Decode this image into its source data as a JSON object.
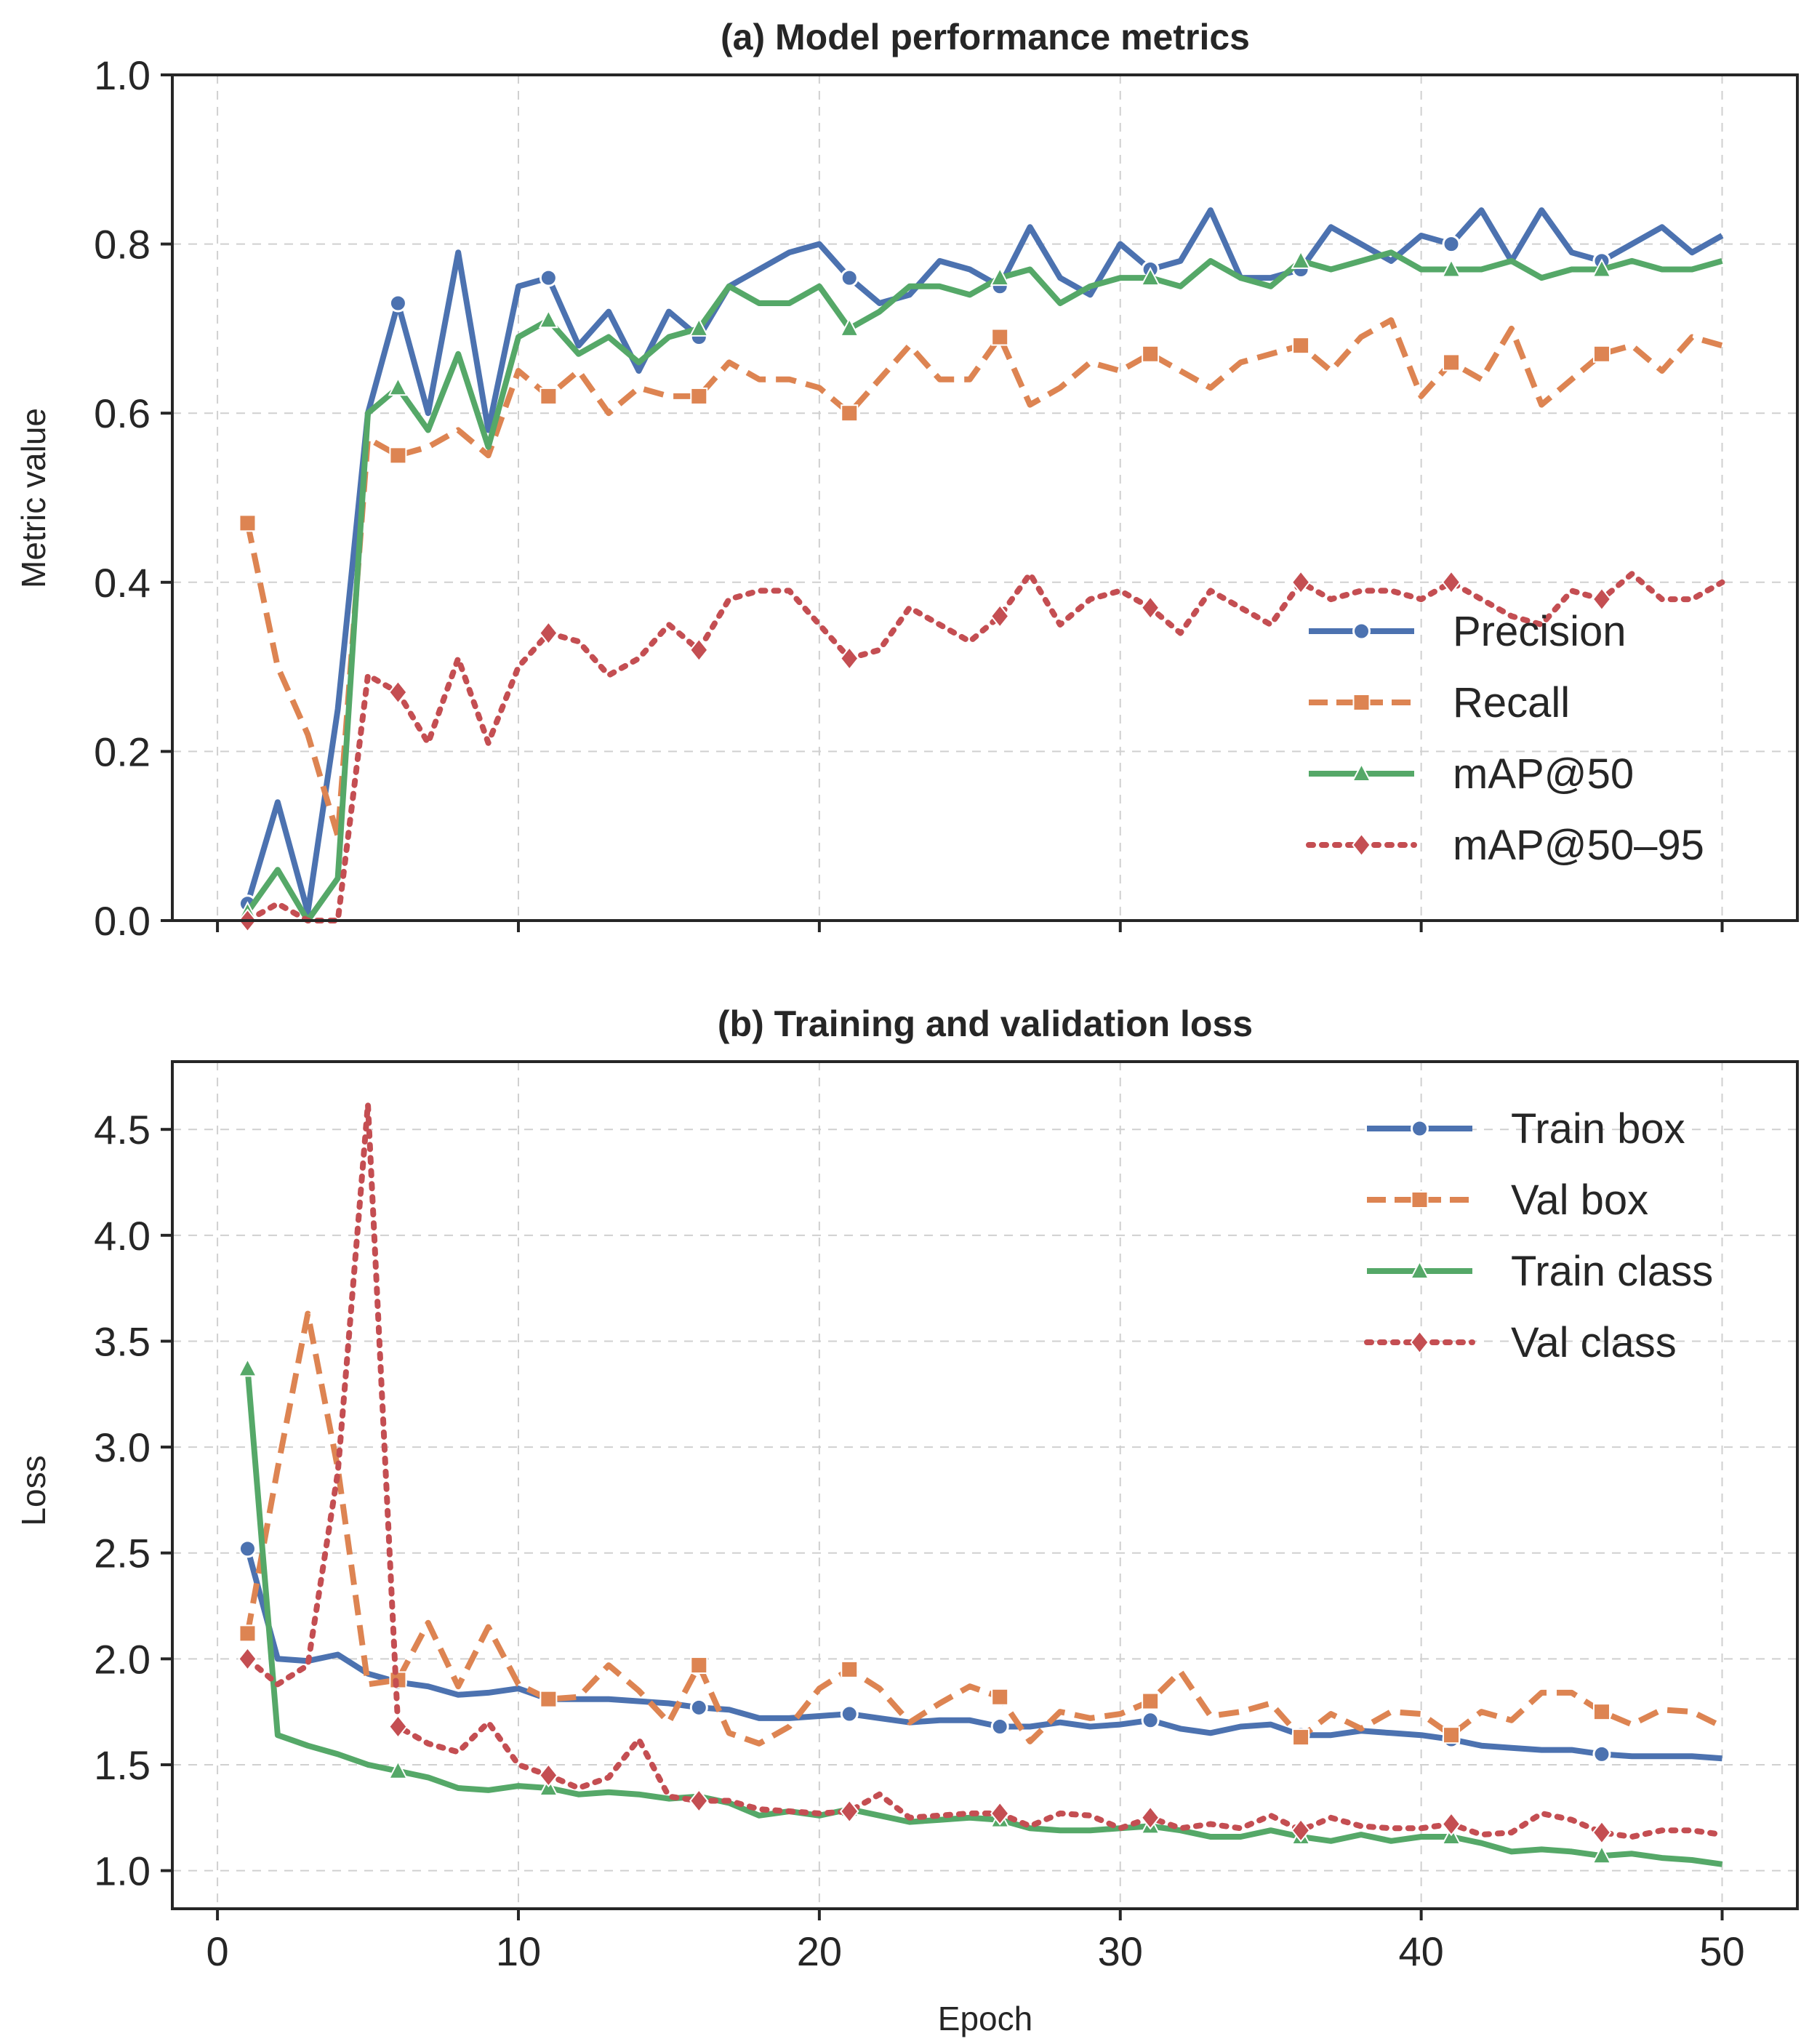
{
  "chart_data": [
    {
      "type": "line",
      "title": "(a) Model performance metrics",
      "xlabel": "",
      "ylabel": "Metric value",
      "xlim": [
        -1.5,
        52.5
      ],
      "ylim": [
        0.0,
        1.0
      ],
      "xticks": [
        0,
        10,
        20,
        30,
        40,
        50
      ],
      "yticks": [
        0.0,
        0.2,
        0.4,
        0.6,
        0.8,
        1.0
      ],
      "ytick_labels": [
        "0.0",
        "0.2",
        "0.4",
        "0.6",
        "0.8",
        "1.0"
      ],
      "legend_position": "center-right",
      "marker_every": 5,
      "x": [
        1,
        2,
        3,
        4,
        5,
        6,
        7,
        8,
        9,
        10,
        11,
        12,
        13,
        14,
        15,
        16,
        17,
        18,
        19,
        20,
        21,
        22,
        23,
        24,
        25,
        26,
        27,
        28,
        29,
        30,
        31,
        32,
        33,
        34,
        35,
        36,
        37,
        38,
        39,
        40,
        41,
        42,
        43,
        44,
        45,
        46,
        47,
        48,
        49,
        50
      ],
      "series": [
        {
          "name": "Precision",
          "color": "#4C72B0",
          "dash": "",
          "marker": "circle",
          "values": [
            0.02,
            0.14,
            0.01,
            0.25,
            0.6,
            0.73,
            0.6,
            0.79,
            0.58,
            0.75,
            0.76,
            0.68,
            0.72,
            0.65,
            0.72,
            0.69,
            0.75,
            0.77,
            0.79,
            0.8,
            0.76,
            0.73,
            0.74,
            0.78,
            0.77,
            0.75,
            0.82,
            0.76,
            0.74,
            0.8,
            0.77,
            0.78,
            0.84,
            0.76,
            0.76,
            0.77,
            0.82,
            0.8,
            0.78,
            0.81,
            0.8,
            0.84,
            0.78,
            0.84,
            0.79,
            0.78,
            0.8,
            0.82,
            0.79,
            0.81
          ]
        },
        {
          "name": "Recall",
          "color": "#DD8452",
          "dash": "28 14",
          "marker": "square",
          "values": [
            0.47,
            0.3,
            0.22,
            0.1,
            0.57,
            0.55,
            0.56,
            0.58,
            0.55,
            0.65,
            0.62,
            0.65,
            0.6,
            0.63,
            0.62,
            0.62,
            0.66,
            0.64,
            0.64,
            0.63,
            0.6,
            0.64,
            0.68,
            0.64,
            0.64,
            0.69,
            0.61,
            0.63,
            0.66,
            0.65,
            0.67,
            0.65,
            0.63,
            0.66,
            0.67,
            0.68,
            0.65,
            0.69,
            0.71,
            0.62,
            0.66,
            0.64,
            0.7,
            0.61,
            0.64,
            0.67,
            0.68,
            0.65,
            0.69,
            0.68
          ]
        },
        {
          "name": "mAP@50",
          "color": "#55A868",
          "dash": "",
          "marker": "triangle",
          "values": [
            0.01,
            0.06,
            0.0,
            0.05,
            0.6,
            0.63,
            0.58,
            0.67,
            0.56,
            0.69,
            0.71,
            0.67,
            0.69,
            0.66,
            0.69,
            0.7,
            0.75,
            0.73,
            0.73,
            0.75,
            0.7,
            0.72,
            0.75,
            0.75,
            0.74,
            0.76,
            0.77,
            0.73,
            0.75,
            0.76,
            0.76,
            0.75,
            0.78,
            0.76,
            0.75,
            0.78,
            0.77,
            0.78,
            0.79,
            0.77,
            0.77,
            0.77,
            0.78,
            0.76,
            0.77,
            0.77,
            0.78,
            0.77,
            0.77,
            0.78
          ]
        },
        {
          "name": "mAP@50–95",
          "color": "#C44E52",
          "dash": "6 12",
          "marker": "diamond",
          "values": [
            0.0,
            0.02,
            0.0,
            0.0,
            0.29,
            0.27,
            0.21,
            0.31,
            0.21,
            0.3,
            0.34,
            0.33,
            0.29,
            0.31,
            0.35,
            0.32,
            0.38,
            0.39,
            0.39,
            0.35,
            0.31,
            0.32,
            0.37,
            0.35,
            0.33,
            0.36,
            0.41,
            0.35,
            0.38,
            0.39,
            0.37,
            0.34,
            0.39,
            0.37,
            0.35,
            0.4,
            0.38,
            0.39,
            0.39,
            0.38,
            0.4,
            0.38,
            0.36,
            0.35,
            0.39,
            0.38,
            0.41,
            0.38,
            0.38,
            0.4
          ]
        }
      ]
    },
    {
      "type": "line",
      "title": "(b) Training and validation loss",
      "xlabel": "Epoch",
      "ylabel": "Loss",
      "xlim": [
        -1.5,
        52.5
      ],
      "ylim": [
        0.82,
        4.82
      ],
      "xticks": [
        0,
        10,
        20,
        30,
        40,
        50
      ],
      "xtick_labels": [
        "0",
        "10",
        "20",
        "30",
        "40",
        "50"
      ],
      "yticks": [
        1.0,
        1.5,
        2.0,
        2.5,
        3.0,
        3.5,
        4.0,
        4.5
      ],
      "ytick_labels": [
        "1.0",
        "1.5",
        "2.0",
        "2.5",
        "3.0",
        "3.5",
        "4.0",
        "4.5"
      ],
      "legend_position": "top-right",
      "marker_every": 5,
      "x": [
        1,
        2,
        3,
        4,
        5,
        6,
        7,
        8,
        9,
        10,
        11,
        12,
        13,
        14,
        15,
        16,
        17,
        18,
        19,
        20,
        21,
        22,
        23,
        24,
        25,
        26,
        27,
        28,
        29,
        30,
        31,
        32,
        33,
        34,
        35,
        36,
        37,
        38,
        39,
        40,
        41,
        42,
        43,
        44,
        45,
        46,
        47,
        48,
        49,
        50
      ],
      "series": [
        {
          "name": "Train box",
          "color": "#4C72B0",
          "dash": "",
          "marker": "circle",
          "values": [
            2.52,
            2.0,
            1.99,
            2.02,
            1.93,
            1.89,
            1.87,
            1.83,
            1.84,
            1.86,
            1.81,
            1.81,
            1.81,
            1.8,
            1.79,
            1.77,
            1.76,
            1.72,
            1.72,
            1.73,
            1.74,
            1.72,
            1.7,
            1.71,
            1.71,
            1.68,
            1.68,
            1.7,
            1.68,
            1.69,
            1.71,
            1.67,
            1.65,
            1.68,
            1.69,
            1.64,
            1.64,
            1.66,
            1.65,
            1.64,
            1.62,
            1.59,
            1.58,
            1.57,
            1.57,
            1.55,
            1.54,
            1.54,
            1.54,
            1.53
          ]
        },
        {
          "name": "Val box",
          "color": "#DD8452",
          "dash": "28 14",
          "marker": "square",
          "values": [
            2.12,
            2.9,
            3.63,
            2.9,
            1.88,
            1.9,
            2.17,
            1.87,
            2.15,
            1.88,
            1.81,
            1.82,
            1.97,
            1.85,
            1.7,
            1.97,
            1.65,
            1.6,
            1.68,
            1.86,
            1.95,
            1.86,
            1.7,
            1.79,
            1.87,
            1.82,
            1.61,
            1.75,
            1.72,
            1.74,
            1.8,
            1.94,
            1.73,
            1.75,
            1.79,
            1.63,
            1.74,
            1.67,
            1.75,
            1.74,
            1.64,
            1.75,
            1.71,
            1.84,
            1.84,
            1.75,
            1.69,
            1.76,
            1.75,
            1.68
          ]
        },
        {
          "name": "Train class",
          "color": "#55A868",
          "dash": "",
          "marker": "triangle",
          "values": [
            3.37,
            1.64,
            1.59,
            1.55,
            1.5,
            1.47,
            1.44,
            1.39,
            1.38,
            1.4,
            1.39,
            1.36,
            1.37,
            1.36,
            1.34,
            1.35,
            1.32,
            1.26,
            1.28,
            1.26,
            1.29,
            1.26,
            1.23,
            1.24,
            1.25,
            1.24,
            1.2,
            1.19,
            1.19,
            1.2,
            1.21,
            1.19,
            1.16,
            1.16,
            1.19,
            1.16,
            1.14,
            1.17,
            1.14,
            1.16,
            1.16,
            1.13,
            1.09,
            1.1,
            1.09,
            1.07,
            1.08,
            1.06,
            1.05,
            1.03
          ]
        },
        {
          "name": "Val class",
          "color": "#C44E52",
          "dash": "6 12",
          "marker": "diamond",
          "values": [
            2.0,
            1.88,
            1.97,
            2.88,
            4.62,
            1.68,
            1.6,
            1.56,
            1.7,
            1.5,
            1.45,
            1.39,
            1.44,
            1.62,
            1.35,
            1.33,
            1.33,
            1.29,
            1.28,
            1.27,
            1.28,
            1.36,
            1.25,
            1.26,
            1.27,
            1.27,
            1.21,
            1.27,
            1.26,
            1.2,
            1.25,
            1.2,
            1.22,
            1.2,
            1.26,
            1.19,
            1.25,
            1.21,
            1.2,
            1.2,
            1.22,
            1.17,
            1.18,
            1.27,
            1.24,
            1.18,
            1.16,
            1.19,
            1.19,
            1.17
          ]
        }
      ]
    }
  ]
}
